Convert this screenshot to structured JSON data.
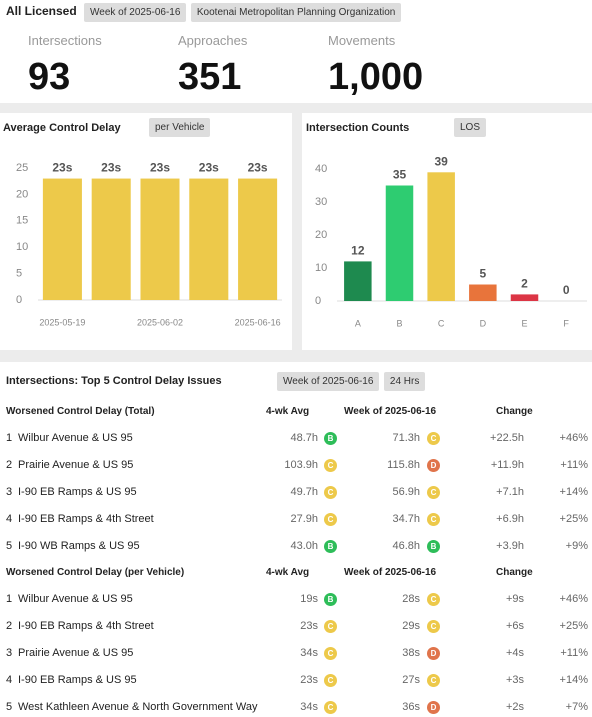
{
  "header": {
    "title": "All Licensed",
    "badges": [
      "Week of 2025-06-16",
      "Kootenai Metropolitan Planning Organization"
    ]
  },
  "kpis": [
    {
      "label": "Intersections",
      "value": "93"
    },
    {
      "label": "Approaches",
      "value": "351"
    },
    {
      "label": "Movements",
      "value": "1,000"
    }
  ],
  "chart_data": [
    {
      "type": "bar",
      "title": "Average Control Delay",
      "badge": "per Vehicle",
      "categories": [
        "2025-05-19",
        null,
        "2025-06-02",
        null,
        "2025-06-16"
      ],
      "values": [
        23,
        23,
        23,
        23,
        23
      ],
      "value_labels": [
        "23s",
        "23s",
        "23s",
        "23s",
        "23s"
      ],
      "color": "#edc94a",
      "ylim": [
        0,
        25
      ],
      "yticks": [
        0,
        5,
        10,
        15,
        20,
        25
      ],
      "grid": false
    },
    {
      "type": "bar",
      "title": "Intersection Counts",
      "badge": "LOS",
      "categories": [
        "A",
        "B",
        "C",
        "D",
        "E",
        "F"
      ],
      "values": [
        12,
        35,
        39,
        5,
        2,
        0
      ],
      "colors": [
        "#1e8a4f",
        "#2ecc71",
        "#edc94a",
        "#e8743b",
        "#dc3545",
        "#999999"
      ],
      "ylim": [
        0,
        40
      ],
      "yticks": [
        0,
        10,
        20,
        30,
        40
      ],
      "grid": false
    }
  ],
  "table": {
    "title": "Intersections: Top 5 Control Delay Issues",
    "badges": [
      "Week of 2025-06-16",
      "24 Hrs"
    ],
    "sections": [
      {
        "columns": [
          "Worsened Control Delay (Total)",
          "4-wk Avg",
          "Week of 2025-06-16",
          "Change"
        ],
        "rows": [
          [
            "1",
            "Wilbur Avenue & US 95",
            "48.7h",
            "B",
            "71.3h",
            "C",
            "+22.5h",
            "+46%"
          ],
          [
            "2",
            "Prairie Avenue & US 95",
            "103.9h",
            "C",
            "115.8h",
            "D",
            "+11.9h",
            "+11%"
          ],
          [
            "3",
            "I-90 EB Ramps & US 95",
            "49.7h",
            "C",
            "56.9h",
            "C",
            "+7.1h",
            "+14%"
          ],
          [
            "4",
            "I-90 EB Ramps & 4th Street",
            "27.9h",
            "C",
            "34.7h",
            "C",
            "+6.9h",
            "+25%"
          ],
          [
            "5",
            "I-90 WB Ramps & US 95",
            "43.0h",
            "B",
            "46.8h",
            "B",
            "+3.9h",
            "+9%"
          ]
        ]
      },
      {
        "columns": [
          "Worsened Control Delay (per Vehicle)",
          "4-wk Avg",
          "Week of 2025-06-16",
          "Change"
        ],
        "rows": [
          [
            "1",
            "Wilbur Avenue & US 95",
            "19s",
            "B",
            "28s",
            "C",
            "+9s",
            "+46%"
          ],
          [
            "2",
            "I-90 EB Ramps & 4th Street",
            "23s",
            "C",
            "29s",
            "C",
            "+6s",
            "+25%"
          ],
          [
            "3",
            "Prairie Avenue & US 95",
            "34s",
            "C",
            "38s",
            "D",
            "+4s",
            "+11%"
          ],
          [
            "4",
            "I-90 EB Ramps & US 95",
            "23s",
            "C",
            "27s",
            "C",
            "+3s",
            "+14%"
          ],
          [
            "5",
            "West Kathleen Avenue & North Government Way",
            "34s",
            "C",
            "36s",
            "D",
            "+2s",
            "+7%"
          ]
        ]
      }
    ]
  }
}
